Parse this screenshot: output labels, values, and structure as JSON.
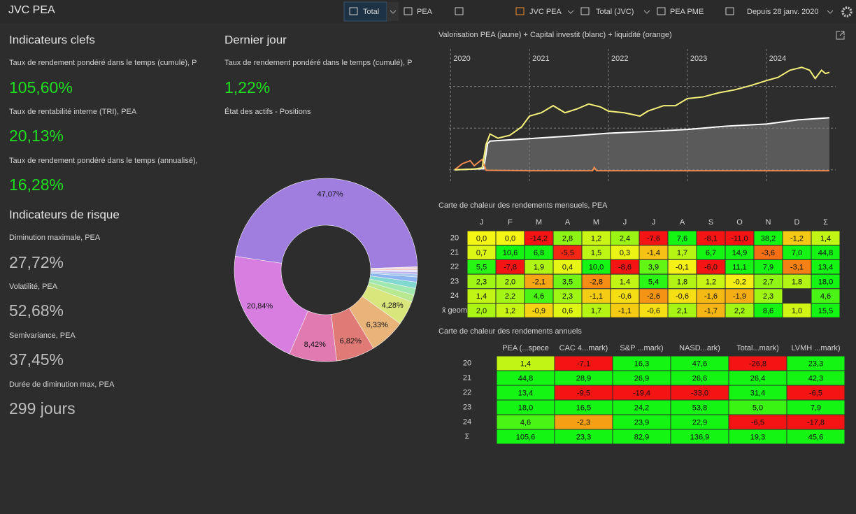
{
  "toolbar": {
    "title": "JVC PEA",
    "buttons": [
      "Total",
      "PEA",
      "JVC PEA",
      "Total (JVC)",
      "PEA PME",
      "Depuis 28 janv. 2020"
    ]
  },
  "key_indicators": {
    "title": "Indicateurs clefs",
    "items": [
      {
        "label": "Taux de rendement pondéré dans le temps (cumulé), P",
        "value": "105,60%"
      },
      {
        "label": "Taux de rentabilité interne (TRI), PEA",
        "value": "20,13%"
      },
      {
        "label": "Taux de rendement pondéré dans le temps (annualisé),",
        "value": "16,28%"
      }
    ]
  },
  "risk_indicators": {
    "title": "Indicateurs de risque",
    "items": [
      {
        "label": "Diminution maximale, PEA",
        "value": "27,72%"
      },
      {
        "label": "Volatilité, PEA",
        "value": "52,68%"
      },
      {
        "label": "Semivariance, PEA",
        "value": "37,45%"
      },
      {
        "label": "Durée de diminution max, PEA",
        "value": "299 jours"
      }
    ]
  },
  "last_day": {
    "title": "Dernier jour",
    "items": [
      {
        "label": "Taux de rendement pondéré dans le temps (cumulé), P",
        "value": "1,22%"
      }
    ],
    "positions": {
      "type": "donut",
      "title": "État des actifs - Positions",
      "values": [
        47.07,
        0.3,
        0.3,
        0.3,
        0.4,
        0.5,
        0.9,
        1.1,
        1.2,
        1.24,
        4.28,
        6.33,
        6.82,
        8.42,
        20.84
      ],
      "value_labels": [
        "47,07%",
        null,
        null,
        null,
        null,
        null,
        null,
        null,
        null,
        null,
        "4,28%",
        "6,33%",
        "6,82%",
        "8,42%",
        "20,84%"
      ],
      "colors": [
        "#9f7ee0",
        "#f0d8e8",
        "#f5c8c8",
        "#e0e0f8",
        "#c0b0f0",
        "#a8c8f0",
        "#8cb4f0",
        "#80d8d0",
        "#a0e8b0",
        "#b8e890",
        "#d9e67c",
        "#e8b47a",
        "#e07a76",
        "#e07ab0",
        "#d77ee0"
      ]
    }
  },
  "valuation_chart": {
    "type": "line",
    "title": "Valorisation PEA (jaune) + Capital investit (blanc) + liquidité (orange)",
    "xlim": [
      2019.98,
      2024.88
    ],
    "xticks": [
      2020,
      2021,
      2022,
      2023,
      2024
    ],
    "ylim": [
      -3200,
      29000
    ],
    "yticks": [
      0,
      10000,
      20000
    ],
    "grid": true,
    "series": [
      {
        "name": "Capital investit",
        "color": "#ffffff",
        "area_color": "#5a5a5a",
        "x": [
          2020.05,
          2020.42,
          2020.47,
          2020.5,
          2021.0,
          2021.5,
          2022.0,
          2022.5,
          2023.0,
          2023.5,
          2024.0,
          2024.4,
          2024.8
        ],
        "values": [
          0,
          300,
          6300,
          6900,
          7500,
          8100,
          8800,
          9200,
          9700,
          10500,
          11000,
          12000,
          12500
        ]
      },
      {
        "name": "Liquidité",
        "color": "#f08a50",
        "x": [
          2020.05,
          2020.15,
          2020.25,
          2020.3,
          2020.4,
          2020.45,
          2021.0,
          2021.8,
          2021.82,
          2021.85,
          2022.5,
          2023.5,
          2024.8
        ],
        "values": [
          0,
          1500,
          2200,
          1000,
          2500,
          -100,
          -200,
          -200,
          600,
          -200,
          -200,
          -200,
          -200
        ]
      },
      {
        "name": "Valorisation PEA",
        "color": "#f5f07a",
        "x": [
          2020.05,
          2020.3,
          2020.4,
          2020.45,
          2020.5,
          2020.6,
          2020.75,
          2020.9,
          2021.0,
          2021.15,
          2021.3,
          2021.45,
          2021.6,
          2021.75,
          2021.9,
          2022.0,
          2022.2,
          2022.4,
          2022.5,
          2022.7,
          2022.85,
          2023.0,
          2023.2,
          2023.4,
          2023.6,
          2023.8,
          2024.0,
          2024.15,
          2024.3,
          2024.45,
          2024.55,
          2024.62,
          2024.7,
          2024.75,
          2024.8
        ],
        "values": [
          0,
          200,
          500,
          6100,
          8600,
          7600,
          8300,
          10300,
          12900,
          13700,
          15400,
          13700,
          14600,
          15800,
          15100,
          14100,
          13700,
          12900,
          14100,
          15400,
          15400,
          17100,
          17500,
          18500,
          19200,
          20200,
          21400,
          22200,
          23900,
          24600,
          23900,
          21900,
          23900,
          23100,
          23400
        ]
      }
    ]
  },
  "monthly_heatmap": {
    "title": "Carte de chaleur des rendements mensuels, PEA",
    "columns": [
      "J",
      "F",
      "M",
      "A",
      "M",
      "J",
      "J",
      "A",
      "S",
      "O",
      "N",
      "D",
      "Σ"
    ],
    "rows": [
      {
        "label": "20",
        "cells": [
          "0,0",
          "0,0",
          "-14,2",
          "2,8",
          "1,2",
          "2,4",
          "-7,6",
          "7,6",
          "-8,1",
          "-11,0",
          "38,2",
          "-1,2",
          "1,4"
        ]
      },
      {
        "label": "21",
        "cells": [
          "0,7",
          "10,6",
          "6,8",
          "-5,5",
          "1,5",
          "0,3",
          "-1,4",
          "1,7",
          "6,7",
          "14,9",
          "-3,6",
          "7,0",
          "44,8"
        ]
      },
      {
        "label": "22",
        "cells": [
          "5,5",
          "-7,8",
          "1,9",
          "0,4",
          "10,0",
          "-8,6",
          "3,9",
          "-0,1",
          "-6,0",
          "11,1",
          "7,9",
          "-3,1",
          "13,4"
        ]
      },
      {
        "label": "23",
        "cells": [
          "2,3",
          "2,0",
          "-2,1",
          "3,5",
          "-2,8",
          "1,4",
          "5,4",
          "1,8",
          "1,2",
          "-0,2",
          "2,7",
          "1,8",
          "18,0"
        ]
      },
      {
        "label": "24",
        "cells": [
          "1,4",
          "2,2",
          "4,6",
          "2,3",
          "-1,1",
          "-0,6",
          "-2,6",
          "-0,6",
          "-1,6",
          "-1,9",
          "2,3",
          null,
          "4,6"
        ]
      },
      {
        "label": "x̄ geom",
        "cells": [
          "2,0",
          "1,2",
          "-0,9",
          "0,6",
          "1,7",
          "-1,1",
          "-0,6",
          "2,1",
          "-1,7",
          "2,2",
          "8,6",
          "1,0",
          "15,5"
        ]
      }
    ]
  },
  "annual_heatmap": {
    "title": "Carte de chaleur des rendements annuels",
    "columns": [
      "PEA (...spece",
      "CAC 4...mark)",
      "S&P ...mark)",
      "NASD...ark)",
      "Total...mark)",
      "LVMH ...mark)"
    ],
    "rows": [
      {
        "label": "20",
        "cells": [
          "1,4",
          "-7,1",
          "16,3",
          "47,6",
          "-26,8",
          "23,3"
        ]
      },
      {
        "label": "21",
        "cells": [
          "44,8",
          "28,9",
          "26,9",
          "26,6",
          "26,4",
          "42,3"
        ]
      },
      {
        "label": "22",
        "cells": [
          "13,4",
          "-9,5",
          "-19,4",
          "-33,0",
          "31,4",
          "-6,5"
        ]
      },
      {
        "label": "23",
        "cells": [
          "18,0",
          "16,5",
          "24,2",
          "53,8",
          "5,0",
          "7,9"
        ]
      },
      {
        "label": "24",
        "cells": [
          "4,6",
          "-2,3",
          "23,9",
          "22,9",
          "-6,5",
          "-17,8"
        ]
      },
      {
        "label": "Σ",
        "cells": [
          "105,6",
          "23,3",
          "82,9",
          "136,9",
          "19,3",
          "45,6"
        ]
      }
    ]
  }
}
